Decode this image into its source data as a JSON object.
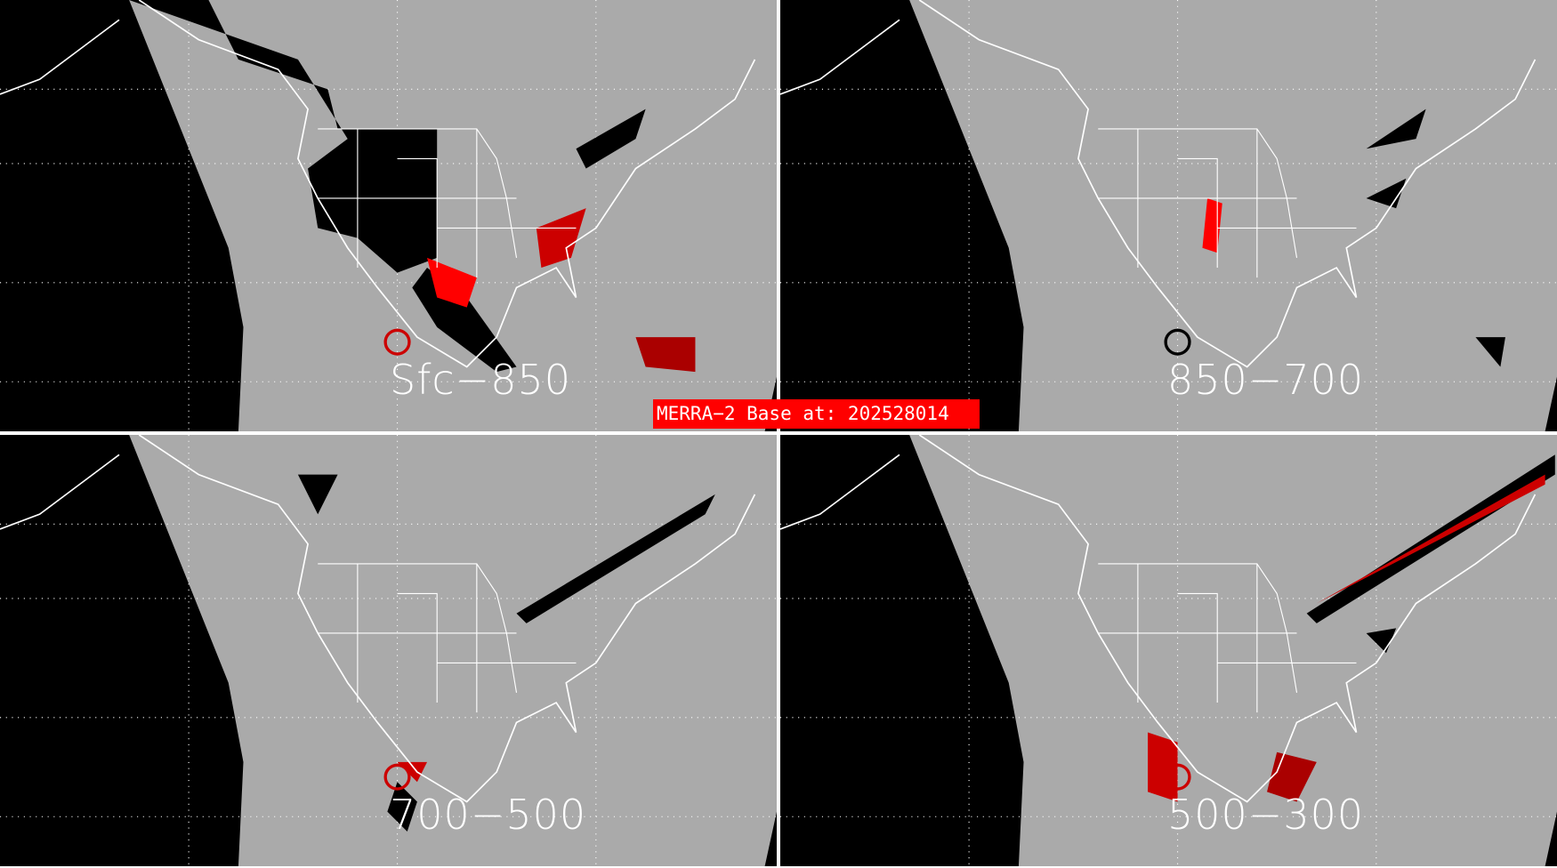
{
  "banner": {
    "text": "MERRA−2 Base at: 202528014"
  },
  "panels": [
    {
      "label": "Sfc−850"
    },
    {
      "label": "850−700"
    },
    {
      "label": "700−500"
    },
    {
      "label": "500−300"
    }
  ],
  "colors": {
    "land": "#aaaaaa",
    "offdisk": "#000000",
    "boundaries": "#ffffff",
    "highlight": "#ff0000",
    "dark_red": "#aa0000",
    "banner": "#ff0000"
  }
}
